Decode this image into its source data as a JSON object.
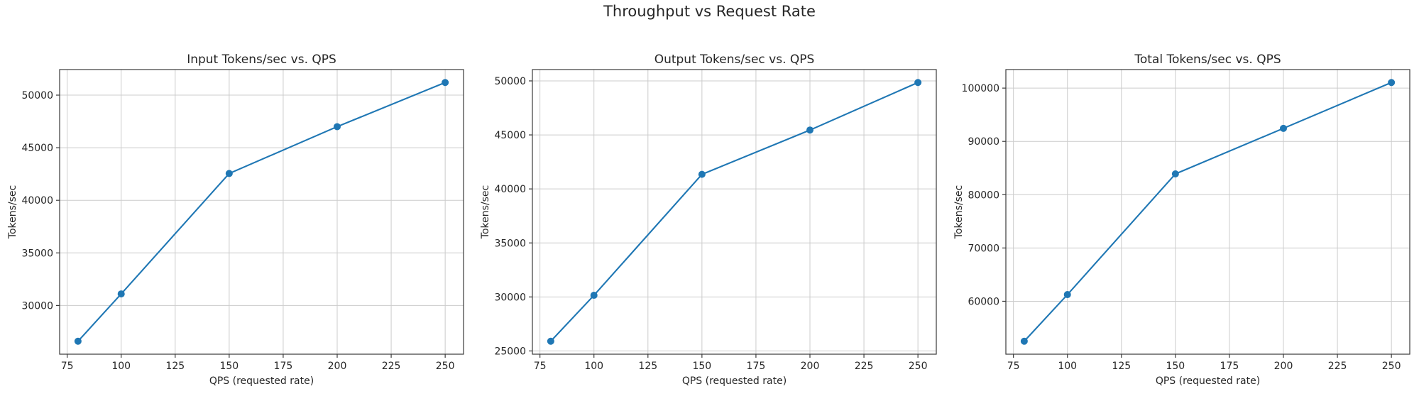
{
  "page": {
    "suptitle": "Throughput vs Request Rate",
    "background_color": "#ffffff",
    "text_color": "#262626"
  },
  "style": {
    "line_color": "#1f77b4",
    "marker_color": "#1f77b4",
    "grid_color": "#cccccc",
    "spine_color": "#3a3a3a",
    "tick_color": "#3a3a3a"
  },
  "chart_data": [
    {
      "type": "line",
      "title": "Input Tokens/sec vs. QPS",
      "xlabel": "QPS (requested rate)",
      "ylabel": "Tokens/sec",
      "x": [
        80,
        100,
        150,
        200,
        250
      ],
      "values": [
        26600,
        31100,
        42550,
        47000,
        51200
      ],
      "xlim": [
        71.5,
        258.5
      ],
      "ylim": [
        25370,
        52430
      ],
      "xticks": [
        75,
        100,
        125,
        150,
        175,
        200,
        225,
        250
      ],
      "yticks": [
        30000,
        35000,
        40000,
        45000,
        50000
      ],
      "grid": true,
      "legend": null,
      "marker": "circle"
    },
    {
      "type": "line",
      "title": "Output Tokens/sec vs. QPS",
      "xlabel": "QPS (requested rate)",
      "ylabel": "Tokens/sec",
      "x": [
        80,
        100,
        150,
        200,
        250
      ],
      "values": [
        25900,
        30150,
        41350,
        45450,
        49850
      ],
      "xlim": [
        71.5,
        258.5
      ],
      "ylim": [
        24700,
        51050
      ],
      "xticks": [
        75,
        100,
        125,
        150,
        175,
        200,
        225,
        250
      ],
      "yticks": [
        25000,
        30000,
        35000,
        40000,
        45000,
        50000
      ],
      "grid": true,
      "legend": null,
      "marker": "circle"
    },
    {
      "type": "line",
      "title": "Total Tokens/sec vs. QPS",
      "xlabel": "QPS (requested rate)",
      "ylabel": "Tokens/sec",
      "x": [
        80,
        100,
        150,
        200,
        250
      ],
      "values": [
        52500,
        61250,
        83900,
        92450,
        101050
      ],
      "xlim": [
        71.5,
        258.5
      ],
      "ylim": [
        50070,
        103480
      ],
      "xticks": [
        75,
        100,
        125,
        150,
        175,
        200,
        225,
        250
      ],
      "yticks": [
        60000,
        70000,
        80000,
        90000,
        100000
      ],
      "grid": true,
      "legend": null,
      "marker": "circle"
    }
  ]
}
